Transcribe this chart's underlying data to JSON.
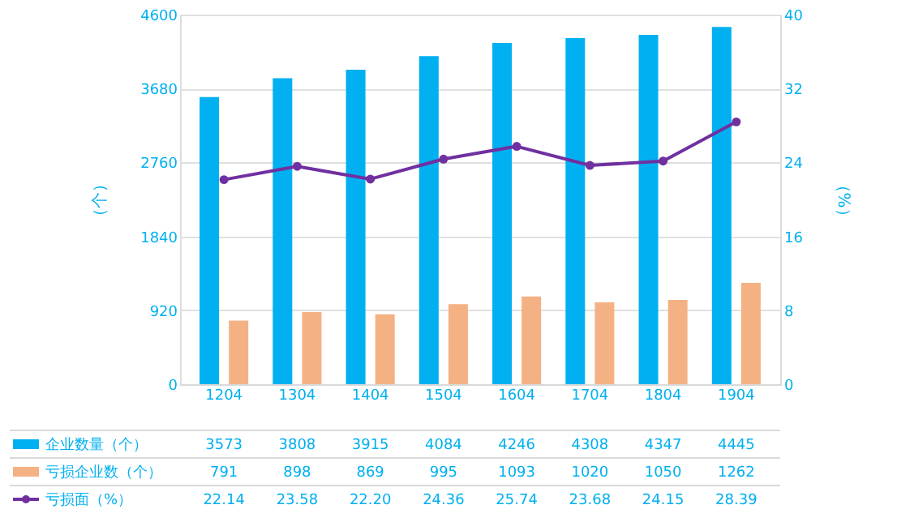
{
  "chart_data": {
    "type": "bar",
    "categories": [
      "1204",
      "1304",
      "1404",
      "1504",
      "1604",
      "1704",
      "1804",
      "1904"
    ],
    "series": [
      {
        "name": "企业数量（个）",
        "color": "#00b0f0",
        "values": [
          3573,
          3808,
          3915,
          4084,
          4246,
          4308,
          4347,
          4445
        ],
        "value_labels": [
          "3573",
          "3808",
          "3915",
          "4084",
          "4246",
          "4308",
          "4347",
          "4445"
        ]
      },
      {
        "name": "亏损企业数（个）",
        "color": "#f4b183",
        "values": [
          791,
          898,
          869,
          995,
          1093,
          1020,
          1050,
          1262
        ],
        "value_labels": [
          "791",
          "898",
          "869",
          "995",
          "1093",
          "1020",
          "1050",
          "1262"
        ]
      },
      {
        "name": "亏损面（%）",
        "color": "#7030a0",
        "type": "line",
        "axis": "y2",
        "marker": "circle",
        "values": [
          22.14,
          23.58,
          22.2,
          24.36,
          25.74,
          23.68,
          24.15,
          28.39
        ],
        "value_labels": [
          "22.14",
          "23.58",
          "22.20",
          "24.36",
          "25.74",
          "23.68",
          "24.15",
          "28.39"
        ]
      }
    ],
    "ylabel": "（个）",
    "y2label": "（%）",
    "ylim": [
      0,
      4600
    ],
    "yticks": [
      0,
      920,
      1840,
      2760,
      3680,
      4600
    ],
    "y2lim": [
      0,
      40
    ],
    "y2ticks": [
      0,
      8,
      16,
      24,
      32,
      40
    ],
    "grid": "y",
    "legend": "bottom"
  }
}
